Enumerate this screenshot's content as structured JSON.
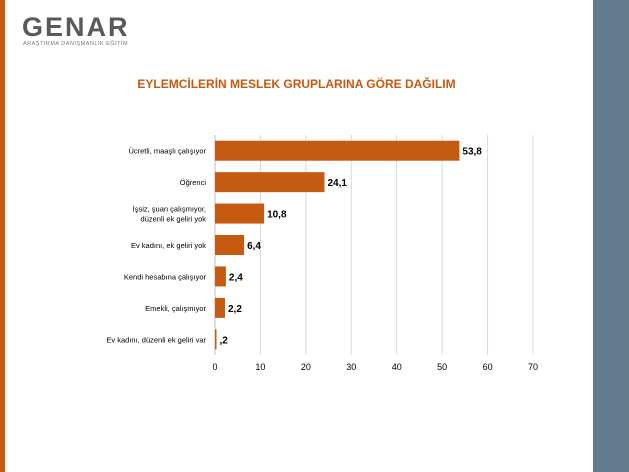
{
  "brand": {
    "name": "GENAR",
    "tagline": "ARAŞTIRMA DANIŞMANLIK EĞİTİM"
  },
  "colors": {
    "bar": "#c55a11",
    "accent": "#c55a11",
    "side_panel": "#627b8e",
    "grid": "#d9d9d9",
    "text": "#000000"
  },
  "chart_data": {
    "type": "bar",
    "orientation": "horizontal",
    "title": "EYLEMCİLERİN MESLEK GRUPLARINA GÖRE DAĞILIM",
    "categories": [
      [
        "Ücretli, maaşlı çalışıyor"
      ],
      [
        "Öğrenci"
      ],
      [
        "İşsiz, şuan çalışmıyor,",
        "düzenli ek geliri yok"
      ],
      [
        "Ev kadını, ek geliri yok"
      ],
      [
        "Kendi hesabına çalışıyor"
      ],
      [
        "Emekli, çalışmıyor"
      ],
      [
        "Ev kadını, düzenli ek geliri var"
      ]
    ],
    "values": [
      53.8,
      24.1,
      10.8,
      6.4,
      2.4,
      2.2,
      0.2
    ],
    "value_labels": [
      "53,8",
      "24,1",
      "10,8",
      "6,4",
      "2,4",
      "2,2",
      ",2"
    ],
    "xlim": [
      0,
      70
    ],
    "xticks": [
      0,
      10,
      20,
      30,
      40,
      50,
      60,
      70
    ],
    "grid": true,
    "legend": "none"
  }
}
